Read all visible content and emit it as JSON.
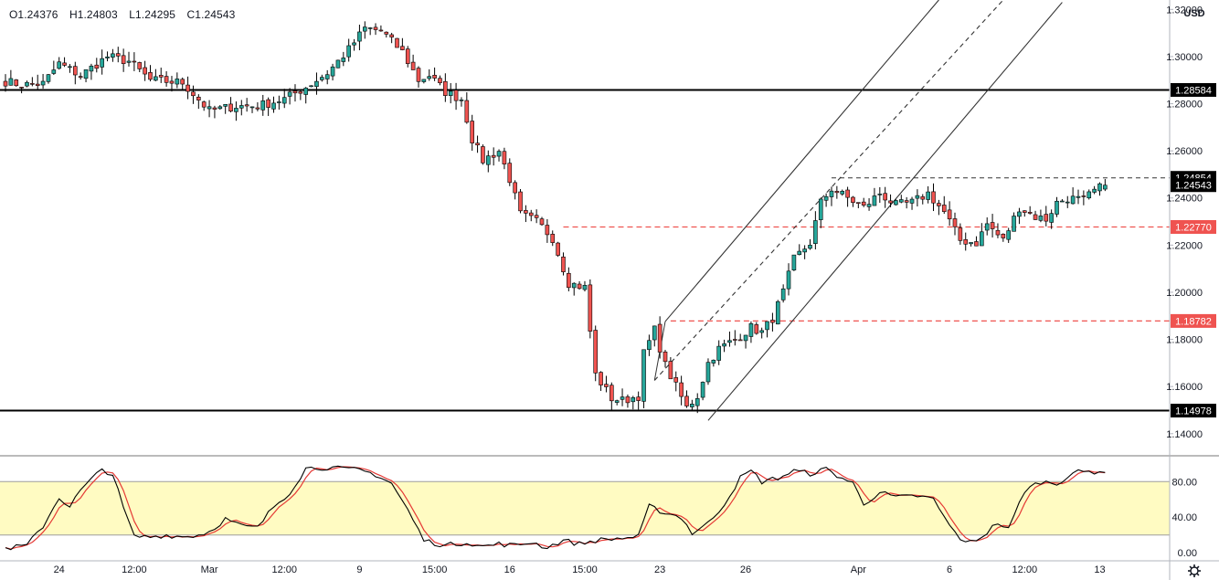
{
  "header": {
    "open": "O1.24376",
    "high": "H1.24803",
    "low": "L1.24295",
    "close": "C1.24543"
  },
  "currency": "USD",
  "settings_icon": "gear-icon",
  "colors": {
    "up": "#26a69a",
    "down": "#ef5350",
    "level_line": "#000000",
    "dashed_level": "#ef5350",
    "stoch_k": "#000000",
    "stoch_d": "#e53935",
    "stoch_band": "#fffbc2"
  },
  "chart_data": [
    {
      "type": "candlestick",
      "y_ticks": [
        "1.32000",
        "1.30000",
        "1.28000",
        "1.26000",
        "1.24000",
        "1.22000",
        "1.20000",
        "1.18000",
        "1.16000",
        "1.14000"
      ],
      "y_tick_values": [
        1.32,
        1.3,
        1.28,
        1.26,
        1.24,
        1.22,
        1.2,
        1.18,
        1.16,
        1.14
      ],
      "ylim": [
        1.131,
        1.324
      ],
      "x_ticks": [
        "24",
        "12:00",
        "Mar",
        "12:00",
        "9",
        "15:00",
        "16",
        "15:00",
        "23",
        "26",
        "Apr",
        "6",
        "12:00",
        "13"
      ],
      "x_tick_index": [
        10,
        24,
        38,
        52,
        66,
        80,
        94,
        108,
        122,
        138,
        159,
        176,
        190,
        204
      ],
      "bar_count": 212,
      "last": {
        "open": 1.24376,
        "high": 1.24803,
        "low": 1.24295,
        "close": 1.24543
      },
      "anchors": [
        [
          0,
          1.2895
        ],
        [
          3,
          1.288
        ],
        [
          7,
          1.2885
        ],
        [
          10,
          1.297
        ],
        [
          14,
          1.292
        ],
        [
          19,
          1.3
        ],
        [
          23,
          1.298
        ],
        [
          27,
          1.29
        ],
        [
          33,
          1.289
        ],
        [
          38,
          1.277
        ],
        [
          43,
          1.279
        ],
        [
          47,
          1.279
        ],
        [
          52,
          1.282
        ],
        [
          56,
          1.287
        ],
        [
          60,
          1.293
        ],
        [
          64,
          1.303
        ],
        [
          67,
          1.312
        ],
        [
          70,
          1.311
        ],
        [
          74,
          1.302
        ],
        [
          77,
          1.29
        ],
        [
          79,
          1.292
        ],
        [
          82,
          1.285
        ],
        [
          85,
          1.282
        ],
        [
          87,
          1.265
        ],
        [
          89,
          1.256
        ],
        [
          92,
          1.26
        ],
        [
          94,
          1.248
        ],
        [
          96,
          1.233
        ],
        [
          99,
          1.23
        ],
        [
          102,
          1.223
        ],
        [
          105,
          1.204
        ],
        [
          108,
          1.202
        ],
        [
          110,
          1.165
        ],
        [
          113,
          1.155
        ],
        [
          115,
          1.154
        ],
        [
          118,
          1.156
        ],
        [
          119,
          1.174
        ],
        [
          121,
          1.184
        ],
        [
          123,
          1.169
        ],
        [
          125,
          1.16
        ],
        [
          127,
          1.151
        ],
        [
          129,
          1.156
        ],
        [
          131,
          1.17
        ],
        [
          133,
          1.176
        ],
        [
          136,
          1.18
        ],
        [
          139,
          1.185
        ],
        [
          141,
          1.183
        ],
        [
          143,
          1.189
        ],
        [
          145,
          1.2
        ],
        [
          147,
          1.214
        ],
        [
          150,
          1.221
        ],
        [
          152,
          1.238
        ],
        [
          154,
          1.244
        ],
        [
          157,
          1.24
        ],
        [
          160,
          1.236
        ],
        [
          163,
          1.242
        ],
        [
          166,
          1.237
        ],
        [
          169,
          1.238
        ],
        [
          172,
          1.242
        ],
        [
          175,
          1.234
        ],
        [
          178,
          1.222
        ],
        [
          181,
          1.221
        ],
        [
          183,
          1.229
        ],
        [
          186,
          1.222
        ],
        [
          189,
          1.236
        ],
        [
          192,
          1.232
        ],
        [
          194,
          1.231
        ],
        [
          196,
          1.238
        ],
        [
          198,
          1.24
        ],
        [
          201,
          1.239
        ],
        [
          203,
          1.243
        ],
        [
          205,
          1.2454
        ]
      ],
      "horizontal_levels": [
        {
          "label": "1.28584",
          "value": 1.28584,
          "style": "solid"
        },
        {
          "label": "1.14978",
          "value": 1.14978,
          "style": "solid"
        }
      ],
      "dashed_levels": [
        {
          "label": "1.22770",
          "value": 1.2277,
          "start_index": 104
        },
        {
          "label": "1.18782",
          "value": 1.18782,
          "start_index": 124
        }
      ],
      "resistance_level": {
        "label": "1.24854",
        "value": 1.24854,
        "start_index": 154
      },
      "price_label": "1.24543",
      "price_value": 1.24543,
      "channel": {
        "lower_start": [
          131,
          1.1456
        ],
        "lower_end": [
          197,
          1.323
        ],
        "upper_start": [
          123,
          1.1876
        ],
        "upper_end": [
          174,
          1.324
        ],
        "middle_start": [
          121,
          1.1626
        ],
        "middle_end": [
          186,
          1.324
        ]
      }
    },
    {
      "type": "line",
      "y_ticks": [
        "80.00",
        "40.00",
        "0.00"
      ],
      "y_tick_values": [
        80,
        40,
        0
      ],
      "ylim": [
        -8,
        108
      ],
      "band": [
        20,
        80
      ],
      "anchors": [
        [
          0,
          5
        ],
        [
          4,
          8
        ],
        [
          7,
          30
        ],
        [
          10,
          62
        ],
        [
          12,
          52
        ],
        [
          14,
          70
        ],
        [
          18,
          94
        ],
        [
          20,
          88
        ],
        [
          22,
          50
        ],
        [
          24,
          18
        ],
        [
          27,
          18
        ],
        [
          30,
          20
        ],
        [
          33,
          18
        ],
        [
          36,
          20
        ],
        [
          38,
          24
        ],
        [
          41,
          38
        ],
        [
          44,
          30
        ],
        [
          47,
          28
        ],
        [
          50,
          52
        ],
        [
          53,
          68
        ],
        [
          56,
          95
        ],
        [
          60,
          96
        ],
        [
          63,
          94
        ],
        [
          66,
          93
        ],
        [
          69,
          88
        ],
        [
          72,
          78
        ],
        [
          75,
          48
        ],
        [
          78,
          14
        ],
        [
          82,
          8
        ],
        [
          86,
          12
        ],
        [
          89,
          7
        ],
        [
          92,
          10
        ],
        [
          95,
          8
        ],
        [
          98,
          12
        ],
        [
          101,
          6
        ],
        [
          104,
          14
        ],
        [
          107,
          10
        ],
        [
          110,
          14
        ],
        [
          114,
          16
        ],
        [
          118,
          18
        ],
        [
          120,
          52
        ],
        [
          123,
          45
        ],
        [
          126,
          40
        ],
        [
          128,
          22
        ],
        [
          131,
          33
        ],
        [
          134,
          55
        ],
        [
          137,
          84
        ],
        [
          139,
          92
        ],
        [
          141,
          80
        ],
        [
          144,
          84
        ],
        [
          147,
          92
        ],
        [
          150,
          89
        ],
        [
          153,
          94
        ],
        [
          155,
          87
        ],
        [
          158,
          78
        ],
        [
          160,
          55
        ],
        [
          163,
          68
        ],
        [
          166,
          62
        ],
        [
          170,
          64
        ],
        [
          173,
          60
        ],
        [
          176,
          30
        ],
        [
          179,
          10
        ],
        [
          182,
          18
        ],
        [
          185,
          34
        ],
        [
          187,
          26
        ],
        [
          190,
          70
        ],
        [
          193,
          80
        ],
        [
          196,
          78
        ],
        [
          199,
          90
        ],
        [
          205,
          92
        ]
      ]
    }
  ]
}
